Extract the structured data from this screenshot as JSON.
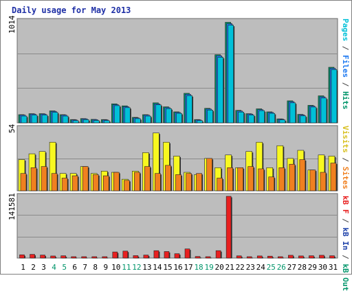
{
  "title": "Daily usage for May 2013",
  "colors": {
    "frame": "#7f7f7f",
    "plot_bg": "#bdbdbd",
    "grid": "#8a8a8a",
    "pages": "#00c0d8",
    "files": "#1c78f0",
    "hits": "#00956a",
    "visits": "#f8f820",
    "sites": "#f08020",
    "kb_f": "#e82020",
    "kb_in": "#1a3ea8",
    "kb_out": "#00956a",
    "weekend_label": "#00956a",
    "weekday_label": "#000000"
  },
  "panels": {
    "top": {
      "ymax_label": "1014",
      "legend": [
        {
          "text": "Pages",
          "color": "#00c0d8"
        },
        {
          "text": " / ",
          "color": "#444444"
        },
        {
          "text": "Files",
          "color": "#1c78f0"
        },
        {
          "text": " / ",
          "color": "#444444"
        },
        {
          "text": "Hits",
          "color": "#00956a"
        }
      ]
    },
    "middle": {
      "ymax_label": "54",
      "legend": [
        {
          "text": "Visits",
          "color": "#d8c020"
        },
        {
          "text": " / ",
          "color": "#444444"
        },
        {
          "text": "Sites",
          "color": "#f08020"
        }
      ]
    },
    "bottom": {
      "ymax_label": "141581",
      "legend": [
        {
          "text": "kB F",
          "color": "#e82020"
        },
        {
          "text": " / ",
          "color": "#444444"
        },
        {
          "text": "kB In",
          "color": "#1a3ea8"
        },
        {
          "text": " / ",
          "color": "#444444"
        },
        {
          "text": "kB Out",
          "color": "#00956a"
        }
      ]
    }
  },
  "chart_data": {
    "type": "bar",
    "x": [
      1,
      2,
      3,
      4,
      5,
      6,
      7,
      8,
      9,
      10,
      11,
      12,
      13,
      14,
      15,
      16,
      17,
      18,
      19,
      20,
      21,
      22,
      23,
      24,
      25,
      26,
      27,
      28,
      29,
      30,
      31
    ],
    "weekend_days": [
      4,
      5,
      11,
      12,
      18,
      19,
      25,
      26
    ],
    "panels": [
      {
        "name": "top",
        "ylim": [
          0,
          1014
        ],
        "series": [
          {
            "name": "Hits",
            "values": [
              82,
              92,
              92,
              120,
              82,
              33,
              43,
              35,
              33,
              190,
              170,
              55,
              82,
              200,
              160,
              110,
              295,
              33,
              145,
              680,
              1004,
              125,
              92,
              140,
              110,
              40,
              220,
              85,
              175,
              270,
              555
            ]
          },
          {
            "name": "Files",
            "values": [
              78,
              88,
              88,
              115,
              78,
              30,
              40,
              32,
              30,
              182,
              162,
              50,
              78,
              190,
              152,
              104,
              285,
              30,
              138,
              670,
              990,
              118,
              88,
              132,
              104,
              37,
              212,
              80,
              168,
              260,
              545
            ]
          },
          {
            "name": "Pages",
            "values": [
              68,
              78,
              78,
              105,
              68,
              22,
              32,
              24,
              22,
              172,
              152,
              42,
              68,
              180,
              142,
              95,
              272,
              22,
              128,
              655,
              975,
              108,
              78,
              122,
              95,
              30,
              200,
              70,
              158,
              248,
              532
            ]
          }
        ]
      },
      {
        "name": "middle",
        "ylim": [
          0,
          54
        ],
        "series": [
          {
            "name": "Visits",
            "values": [
              27,
              32,
              34,
              42,
              15,
              15,
              21,
              15,
              17,
              16,
              10,
              17,
              33,
              50,
              42,
              30,
              16,
              14,
              28,
              20,
              31,
              20,
              34,
              42,
              20,
              39,
              28,
              35,
              18,
              31,
              30
            ]
          },
          {
            "name": "Sites",
            "values": [
              15,
              20,
              21,
              15,
              11,
              13,
              21,
              14,
              13,
              16,
              9,
              16,
              21,
              15,
              22,
              14,
              15,
              15,
              28,
              11,
              20,
              20,
              21,
              19,
              12,
              20,
              23,
              27,
              18,
              16,
              24
            ]
          }
        ]
      },
      {
        "name": "bottom",
        "ylim": [
          0,
          141581
        ],
        "series": [
          {
            "name": "kB F",
            "values": [
              7500,
              8500,
              6900,
              4800,
              5300,
              3200,
              3200,
              3200,
              3200,
              14000,
              16000,
              5600,
              6900,
              17000,
              15000,
              10000,
              21000,
              3700,
              3200,
              17000,
              141581,
              5100,
              3200,
              4900,
              4400,
              3200,
              6400,
              4900,
              5300,
              6400,
              5300
            ]
          }
        ]
      }
    ]
  }
}
